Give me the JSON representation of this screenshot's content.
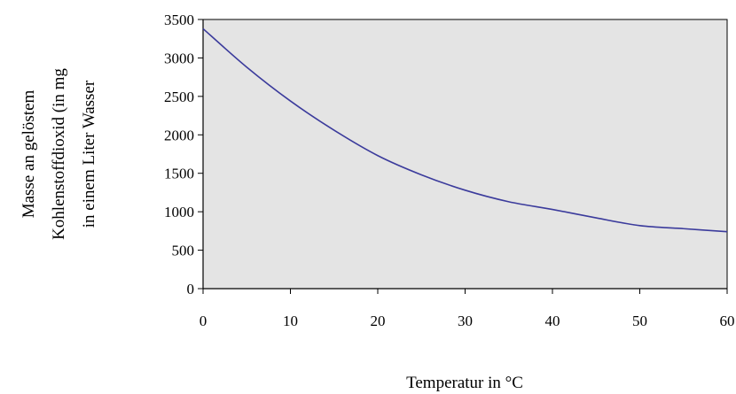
{
  "chart_data": {
    "type": "line",
    "title": "",
    "xlabel": "Temperatur in °C",
    "ylabel_lines": [
      "Masse an gelöstem",
      "Kohlenstoffdioxid (in mg",
      "in einem Liter Wasser"
    ],
    "xlim": [
      0,
      60
    ],
    "ylim": [
      0,
      3500
    ],
    "x_ticks": [
      0,
      10,
      20,
      30,
      40,
      50,
      60
    ],
    "y_ticks": [
      0,
      500,
      1000,
      1500,
      2000,
      2500,
      3000,
      3500
    ],
    "grid": false,
    "legend": "none",
    "colors": {
      "plot_background": "#e4e4e4",
      "line": "#3b3b9c",
      "axis": "#000000"
    },
    "series": [
      {
        "x": [
          0,
          5,
          10,
          15,
          20,
          25,
          30,
          35,
          40,
          45,
          50,
          55,
          60
        ],
        "values": [
          3380,
          2880,
          2440,
          2060,
          1730,
          1480,
          1280,
          1130,
          1030,
          920,
          820,
          780,
          740
        ]
      }
    ]
  }
}
